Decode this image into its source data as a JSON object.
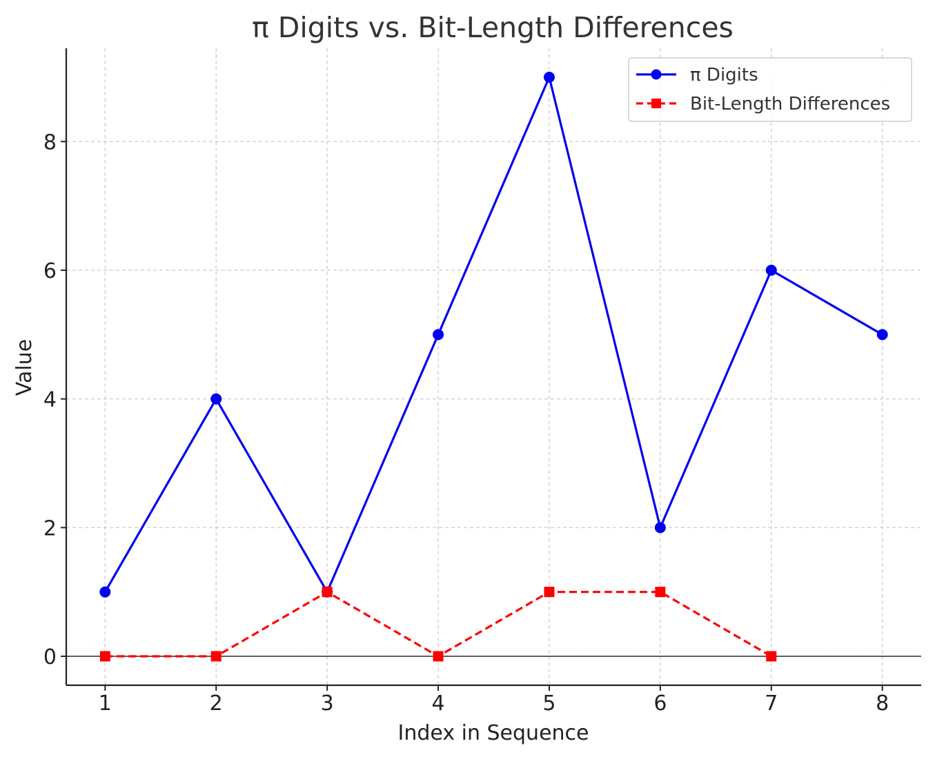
{
  "chart_data": {
    "type": "line",
    "title": "π Digits vs. Bit-Length Differences",
    "xlabel": "Index in Sequence",
    "ylabel": "Value",
    "xlim": [
      0.65,
      8.35
    ],
    "ylim": [
      -0.45,
      9.45
    ],
    "xticks": [
      1,
      2,
      3,
      4,
      5,
      6,
      7,
      8
    ],
    "yticks": [
      0,
      2,
      4,
      6,
      8
    ],
    "grid": true,
    "legend_position": "top-right",
    "series": [
      {
        "name": "π Digits",
        "x": [
          1,
          2,
          3,
          4,
          5,
          6,
          7,
          8
        ],
        "values": [
          1,
          4,
          1,
          5,
          9,
          2,
          6,
          5
        ],
        "color": "#0000ee",
        "line_style": "solid",
        "marker": "circle"
      },
      {
        "name": "Bit-Length Differences",
        "x": [
          1,
          2,
          3,
          4,
          5,
          6,
          7
        ],
        "values": [
          0,
          0,
          1,
          0,
          1,
          1,
          0
        ],
        "color": "#ff0000",
        "line_style": "dashed",
        "marker": "square"
      }
    ]
  }
}
